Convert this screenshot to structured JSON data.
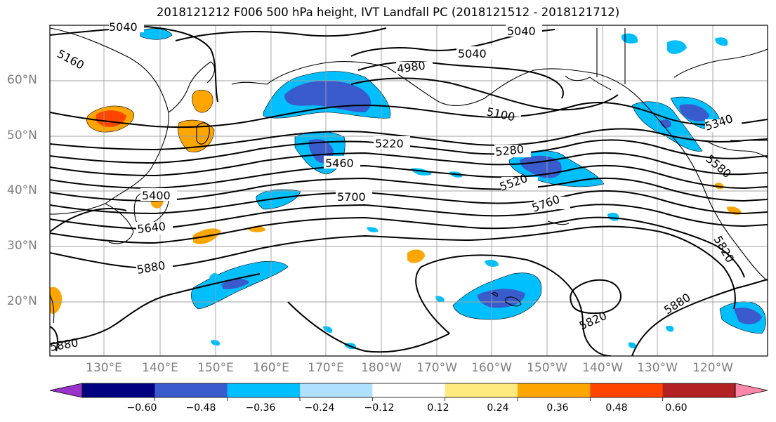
{
  "title": "2018121212 F006 500 hPa height, IVT Landfall PC (2018121512 - 2018121712)",
  "lat_ticks": [
    "60°N",
    "50°N",
    "40°N",
    "30°N",
    "20°N"
  ],
  "lon_ticks": [
    "130°E",
    "140°E",
    "150°E",
    "160°E",
    "170°E",
    "180°W",
    "170°W",
    "160°W",
    "150°W",
    "140°W",
    "130°W",
    "120°W"
  ],
  "contour_labels": [
    "5040",
    "5040",
    "5040",
    "5160",
    "4980",
    "5100",
    "5220",
    "5280",
    "5340",
    "5460",
    "5400",
    "5520",
    "5580",
    "5700",
    "5760",
    "5640",
    "5820",
    "5880",
    "5880",
    "5820",
    "5880"
  ],
  "colorbar": {
    "labels": [
      "−0.60",
      "−0.48",
      "−0.36",
      "−0.24",
      "−0.12",
      "0.12",
      "0.24",
      "0.36",
      "0.48",
      "0.60"
    ],
    "colors": [
      "#9933cc",
      "#000080",
      "#3a5bcc",
      "#00bfff",
      "#b0e0ff",
      "#ffffff",
      "#ffea80",
      "#ffa500",
      "#ff4500",
      "#b22222",
      "#ff88aa"
    ]
  }
}
